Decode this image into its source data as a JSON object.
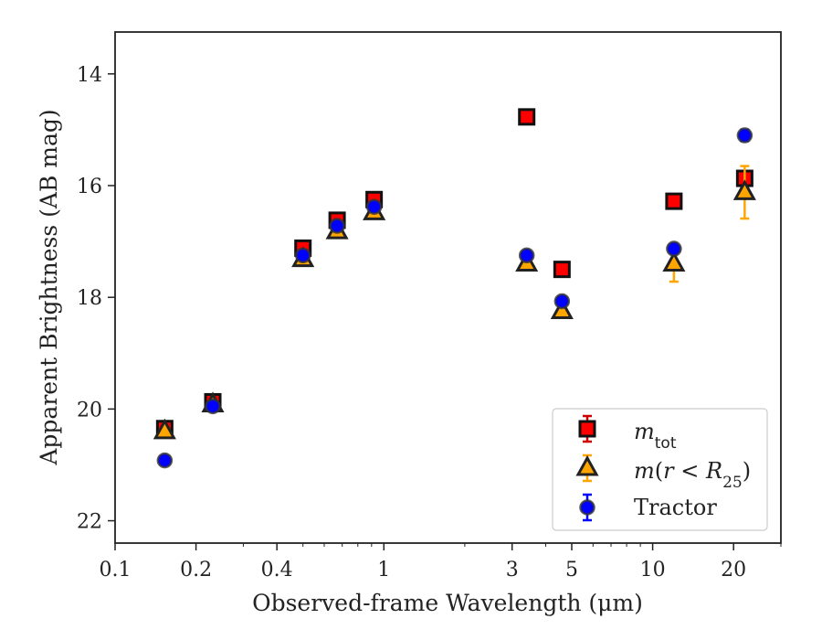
{
  "chart_data": {
    "type": "scatter",
    "xlabel": "Observed-frame Wavelength (μm)",
    "ylabel": "Apparent Brightness (AB mag)",
    "x_scale": "log",
    "xlim": [
      0.1,
      30
    ],
    "ylim": [
      22.4,
      13.25
    ],
    "y_inverted": true,
    "x_ticks": [
      0.1,
      0.2,
      0.4,
      1,
      3,
      5,
      10,
      20
    ],
    "x_tick_labels": [
      "0.1",
      "0.2",
      "0.4",
      "1",
      "3",
      "5",
      "10",
      "20"
    ],
    "y_ticks": [
      14,
      16,
      18,
      20,
      22
    ],
    "y_tick_labels": [
      "14",
      "16",
      "18",
      "20",
      "22"
    ],
    "grid": false,
    "legend_position": "lower-right",
    "series": [
      {
        "name": "m_tot",
        "marker": "square",
        "color": "#ff0000",
        "errcolor": "#cc0000",
        "points": [
          {
            "x": 0.153,
            "y": 20.35,
            "err": 0.05
          },
          {
            "x": 0.231,
            "y": 19.87,
            "err": 0.05
          },
          {
            "x": 0.5,
            "y": 17.12,
            "err": 0.05
          },
          {
            "x": 0.67,
            "y": 16.62,
            "err": 0.05
          },
          {
            "x": 0.92,
            "y": 16.25,
            "err": 0.05
          },
          {
            "x": 3.4,
            "y": 14.77,
            "err": 0.03
          },
          {
            "x": 4.6,
            "y": 17.5,
            "err": 0.03
          },
          {
            "x": 12.0,
            "y": 16.28,
            "err": 0.04
          },
          {
            "x": 22.0,
            "y": 15.87,
            "err": 0.06
          }
        ]
      },
      {
        "name": "m(r < R25)",
        "marker": "triangle",
        "color": "#ffa500",
        "errcolor": "#ffa500",
        "points": [
          {
            "x": 0.153,
            "y": 20.4,
            "err": 0.05
          },
          {
            "x": 0.231,
            "y": 19.92,
            "err": 0.05
          },
          {
            "x": 0.5,
            "y": 17.32,
            "err": 0.05
          },
          {
            "x": 0.67,
            "y": 16.82,
            "err": 0.05
          },
          {
            "x": 0.92,
            "y": 16.48,
            "err": 0.05
          },
          {
            "x": 3.4,
            "y": 17.4,
            "err": 0.05
          },
          {
            "x": 4.6,
            "y": 18.25,
            "err": 0.05
          },
          {
            "x": 12.0,
            "y": 17.4,
            "err": 0.32
          },
          {
            "x": 22.0,
            "y": 16.12,
            "err": 0.47
          }
        ]
      },
      {
        "name": "Tractor",
        "marker": "circle",
        "color": "#0000ff",
        "errcolor": "#0000ff",
        "points": [
          {
            "x": 0.153,
            "y": 20.92,
            "err": 0.05
          },
          {
            "x": 0.231,
            "y": 19.95,
            "err": 0.05
          },
          {
            "x": 0.5,
            "y": 17.25,
            "err": 0.05
          },
          {
            "x": 0.67,
            "y": 16.72,
            "err": 0.05
          },
          {
            "x": 0.92,
            "y": 16.38,
            "err": 0.05
          },
          {
            "x": 3.4,
            "y": 17.25,
            "err": 0.05
          },
          {
            "x": 4.6,
            "y": 18.07,
            "err": 0.05
          },
          {
            "x": 12.0,
            "y": 17.13,
            "err": 0.05
          },
          {
            "x": 22.0,
            "y": 15.1,
            "err": 0.1
          }
        ]
      }
    ]
  }
}
